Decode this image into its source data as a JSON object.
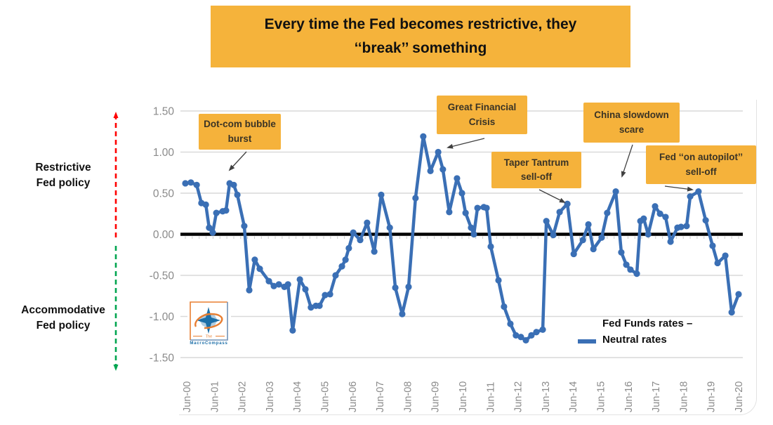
{
  "title_banner": {
    "text": "Every time the Fed becomes restrictive, they\n‘‘break’’ something",
    "bg_color": "#F5B33B"
  },
  "side_labels": {
    "restrictive": "Restrictive\nFed policy",
    "accommodative": "Accommodative\nFed policy",
    "restrictive_arrow_color": "#FF0000",
    "accommodative_arrow_color": "#00A550"
  },
  "legend": {
    "label": "Fed Funds rates –\nNeutral rates",
    "swatch_color": "#3A6FB5"
  },
  "logo": {
    "line1": "The",
    "line2": "MacroCompass"
  },
  "chart_data": {
    "type": "line",
    "title": "Every time the Fed becomes restrictive, they ‘‘break’’ something",
    "xlabel": "",
    "ylabel": "",
    "x_unit": "years since Jun-00",
    "x_tick_labels": [
      "Jun-00",
      "Jun-01",
      "Jun-02",
      "Jun-03",
      "Jun-04",
      "Jun-05",
      "Jun-06",
      "Jun-07",
      "Jun-08",
      "Jun-09",
      "Jun-10",
      "Jun-11",
      "Jun-12",
      "Jun-13",
      "Jun-14",
      "Jun-15",
      "Jun-16",
      "Jun-17",
      "Jun-18",
      "Jun-19",
      "Jun-20"
    ],
    "y_tick_labels": [
      "1.50",
      "1.00",
      "0.50",
      "0.00",
      "-0.50",
      "-1.00",
      "-1.50"
    ],
    "yticks": [
      1.5,
      1.0,
      0.5,
      0.0,
      -0.5,
      -1.0,
      -1.5
    ],
    "ylim": [
      -1.5,
      1.5
    ],
    "xlim": [
      -0.2,
      20.2
    ],
    "grid": true,
    "zero_line": true,
    "legend_position": "bottom-right",
    "series": [
      {
        "name": "Fed Funds rates – Neutral rates",
        "color": "#3A6FB5",
        "x": [
          0.0,
          0.2,
          0.41,
          0.58,
          0.74,
          0.86,
          0.99,
          1.12,
          1.35,
          1.47,
          1.6,
          1.75,
          1.88,
          2.13,
          2.31,
          2.51,
          2.69,
          3.02,
          3.2,
          3.38,
          3.58,
          3.71,
          3.88,
          4.14,
          4.34,
          4.54,
          4.72,
          4.85,
          5.05,
          5.23,
          5.43,
          5.66,
          5.79,
          5.91,
          6.07,
          6.32,
          6.57,
          6.83,
          7.08,
          7.39,
          7.59,
          7.84,
          8.07,
          8.32,
          8.6,
          8.86,
          9.14,
          9.31,
          9.54,
          9.82,
          10.0,
          10.13,
          10.33,
          10.43,
          10.56,
          10.79,
          10.89,
          11.04,
          11.32,
          11.52,
          11.75,
          11.95,
          12.13,
          12.31,
          12.51,
          12.69,
          12.92,
          13.05,
          13.3,
          13.53,
          13.81,
          14.04,
          14.37,
          14.57,
          14.75,
          15.05,
          15.25,
          15.56,
          15.76,
          15.94,
          16.09,
          16.32,
          16.45,
          16.57,
          16.73,
          16.98,
          17.16,
          17.36,
          17.54,
          17.79,
          17.92,
          18.12,
          18.25,
          18.55,
          18.81,
          19.06,
          19.24,
          19.52,
          19.75,
          20.0
        ],
        "y": [
          0.62,
          0.63,
          0.6,
          0.38,
          0.36,
          0.08,
          0.02,
          0.26,
          0.28,
          0.29,
          0.62,
          0.6,
          0.48,
          0.1,
          -0.68,
          -0.31,
          -0.42,
          -0.57,
          -0.63,
          -0.61,
          -0.64,
          -0.61,
          -1.17,
          -0.55,
          -0.67,
          -0.89,
          -0.87,
          -0.87,
          -0.74,
          -0.73,
          -0.5,
          -0.39,
          -0.31,
          -0.17,
          0.02,
          -0.07,
          0.14,
          -0.21,
          0.48,
          0.08,
          -0.65,
          -0.97,
          -0.64,
          0.44,
          1.19,
          0.77,
          1.0,
          0.79,
          0.27,
          0.68,
          0.5,
          0.26,
          0.08,
          0.0,
          0.32,
          0.33,
          0.32,
          -0.15,
          -0.56,
          -0.88,
          -1.09,
          -1.23,
          -1.25,
          -1.29,
          -1.23,
          -1.19,
          -1.16,
          0.16,
          -0.01,
          0.27,
          0.37,
          -0.24,
          -0.07,
          0.12,
          -0.18,
          -0.04,
          0.26,
          0.52,
          -0.22,
          -0.37,
          -0.43,
          -0.48,
          0.16,
          0.19,
          0.0,
          0.34,
          0.25,
          0.21,
          -0.09,
          0.08,
          0.09,
          0.1,
          0.46,
          0.52,
          0.17,
          -0.14,
          -0.35,
          -0.26,
          -0.95,
          -0.73
        ]
      }
    ],
    "annotations": [
      {
        "text": "Dot-com\nbubble burst",
        "target_x": 1.6,
        "target_y": 0.62
      },
      {
        "text": "Great Financial\nCrisis",
        "target_x": 9.1,
        "target_y": 1.0
      },
      {
        "text": "Taper Tantrum\nsell-off",
        "target_x": 13.8,
        "target_y": 0.37
      },
      {
        "text": "China slowdown\nscare",
        "target_x": 15.6,
        "target_y": 0.52
      },
      {
        "text": "Fed ‘‘on autopilot’’\nsell-off",
        "target_x": 18.55,
        "target_y": 0.52
      }
    ],
    "colors": {
      "line": "#3A6FB5",
      "gridline": "#D9D9D9",
      "zero_line": "#000000",
      "axis_text": "#8A8A8A",
      "annotation_bg": "#F5B23B",
      "banner_bg": "#F5B33B",
      "restrictive_arrow": "#FF0000",
      "accommodative_arrow": "#00A550"
    }
  }
}
